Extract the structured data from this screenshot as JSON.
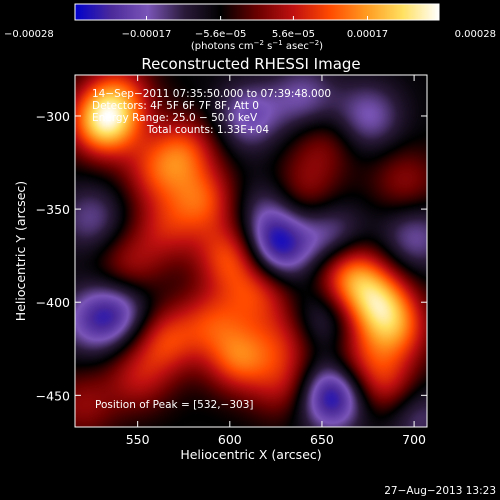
{
  "chart_data": {
    "type": "heatmap",
    "title": "Reconstructed RHESSI Image",
    "xlabel": "Heliocentric X (arcsec)",
    "ylabel": "Heliocentric Y (arcsec)",
    "xlim": [
      516,
      707
    ],
    "ylim": [
      -467,
      -278
    ],
    "x_ticks": [
      550,
      600,
      650,
      700
    ],
    "y_ticks": [
      -300,
      -350,
      -400,
      -450
    ],
    "x_tick_labels": [
      "550",
      "600",
      "650",
      "700"
    ],
    "y_tick_labels": [
      "−300",
      "−350",
      "−400",
      "−450"
    ],
    "colorbar": {
      "range": [
        -0.00028,
        0.00028
      ],
      "ticks": [
        -0.00028,
        -0.00017,
        -5.6e-05,
        5.6e-05,
        0.00017,
        0.00028
      ],
      "tick_labels": [
        "−0.00028",
        "−0.00017",
        "−5.6e−05",
        "5.6e−05",
        "0.00017",
        "0.00028"
      ],
      "unit_main": "(photons cm",
      "unit_exp1": "−2",
      "unit_mid": " s",
      "unit_exp2": "−1",
      "unit_end": " asec",
      "unit_exp3": "−2",
      "unit_close": ")",
      "colors": [
        "#0000cc",
        "#4b2a9a",
        "#7a55b8",
        "#2a1a3a",
        "#000000",
        "#6a0000",
        "#c01010",
        "#ff4a00",
        "#ff9a20",
        "#ffe060",
        "#ffffff"
      ]
    },
    "annotations": {
      "time_range": "14−Sep−2011 07:35:50.000 to 07:39:48.000",
      "detectors": "Detectors: 4F 5F 6F 7F 8F, Att 0",
      "energy_range": "Energy Range: 25.0 − 50.0 keV",
      "total_counts": "Total counts: 1.33E+04",
      "peak": "Position of Peak = [532,−303]"
    },
    "peak_position": [
      532,
      -303
    ],
    "sources": [
      {
        "x": 532,
        "y": -303,
        "amp": 0.00028
      },
      {
        "x": 540,
        "y": -288,
        "amp": 0.00012
      },
      {
        "x": 560,
        "y": -330,
        "amp": 0.00012
      },
      {
        "x": 575,
        "y": -318,
        "amp": 0.00014
      },
      {
        "x": 585,
        "y": -345,
        "amp": 0.00015
      },
      {
        "x": 565,
        "y": -360,
        "amp": 0.0001
      },
      {
        "x": 545,
        "y": -380,
        "amp": 9e-05
      },
      {
        "x": 600,
        "y": -375,
        "amp": 0.00016
      },
      {
        "x": 615,
        "y": -395,
        "amp": 0.00013
      },
      {
        "x": 590,
        "y": -410,
        "amp": 0.00012
      },
      {
        "x": 565,
        "y": -420,
        "amp": 0.00014
      },
      {
        "x": 605,
        "y": -430,
        "amp": 0.00017
      },
      {
        "x": 630,
        "y": -420,
        "amp": 0.0001
      },
      {
        "x": 550,
        "y": -440,
        "amp": 0.0001
      },
      {
        "x": 630,
        "y": -445,
        "amp": 0.0001
      },
      {
        "x": 665,
        "y": -385,
        "amp": 0.00019
      },
      {
        "x": 680,
        "y": -400,
        "amp": 0.00021
      },
      {
        "x": 690,
        "y": -415,
        "amp": 0.00015
      },
      {
        "x": 670,
        "y": -430,
        "amp": 9e-05
      },
      {
        "x": 685,
        "y": -445,
        "amp": 0.00012
      },
      {
        "x": 650,
        "y": -315,
        "amp": 7e-05
      },
      {
        "x": 640,
        "y": -340,
        "amp": 8e-05
      },
      {
        "x": 695,
        "y": -335,
        "amp": 8e-05
      },
      {
        "x": 520,
        "y": -455,
        "amp": 8e-05
      },
      {
        "x": 610,
        "y": -300,
        "amp": -0.00012
      },
      {
        "x": 640,
        "y": -290,
        "amp": -0.0001
      },
      {
        "x": 675,
        "y": -300,
        "amp": -0.00011
      },
      {
        "x": 655,
        "y": -365,
        "amp": -0.00011
      },
      {
        "x": 625,
        "y": -370,
        "amp": -0.0002
      },
      {
        "x": 700,
        "y": -365,
        "amp": -0.0001
      },
      {
        "x": 525,
        "y": -410,
        "amp": -0.00011
      },
      {
        "x": 540,
        "y": -405,
        "amp": -0.00012
      },
      {
        "x": 655,
        "y": -450,
        "amp": -0.00022
      },
      {
        "x": 650,
        "y": -410,
        "amp": -9e-05
      },
      {
        "x": 525,
        "y": -355,
        "amp": -9e-05
      },
      {
        "x": 700,
        "y": -460,
        "amp": -9e-05
      },
      {
        "x": 620,
        "y": -350,
        "amp": -7e-05
      }
    ]
  },
  "footer": {
    "timestamp": "27−Aug−2013 13:23"
  }
}
